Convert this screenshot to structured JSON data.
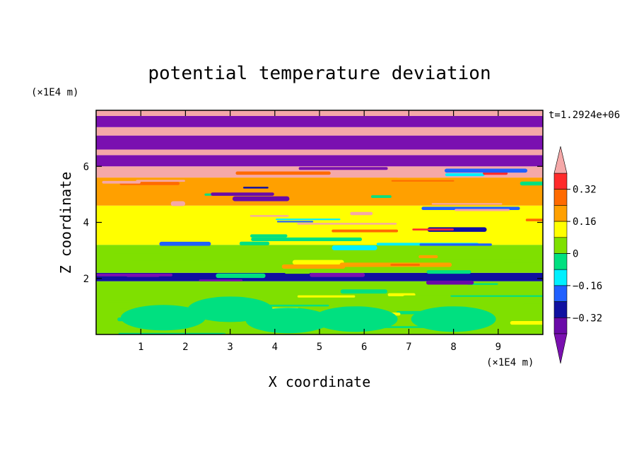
{
  "chart_data": {
    "type": "heatmap",
    "title": "potential temperature deviation",
    "xlabel": "X coordinate",
    "ylabel": "Z coordinate",
    "x_unit": "(×1E4 m)",
    "y_unit": "(×1E4 m)",
    "time_label": "t=1.2924e+06",
    "xlim": [
      0,
      10
    ],
    "ylim": [
      0,
      8
    ],
    "x_ticks": [
      "1",
      "2",
      "3",
      "4",
      "5",
      "6",
      "7",
      "8",
      "9"
    ],
    "y_ticks": [
      "2",
      "4",
      "6"
    ],
    "colorbar": {
      "levels": [
        -0.4,
        -0.32,
        -0.24,
        -0.16,
        -0.08,
        0,
        0.08,
        0.16,
        0.24,
        0.32,
        0.4
      ],
      "labels": [
        "0.32",
        "0.16",
        "0",
        "−0.16",
        "−0.32"
      ],
      "label_values": [
        0.32,
        0.16,
        0,
        -0.16,
        -0.32
      ],
      "colors": [
        "#ff2a2a",
        "#ff6a00",
        "#ffa000",
        "#ffff00",
        "#7fe000",
        "#00e080",
        "#00f0ff",
        "#2060ff",
        "#1010a0",
        "#6a0aa8"
      ],
      "over_color": "#f5a8a8",
      "under_color": "#7a10b0"
    },
    "bands": [
      {
        "z0": 0.0,
        "z1": 1.9,
        "pattern": "mixed",
        "base": 0.04,
        "alt": -0.02
      },
      {
        "z0": 1.9,
        "z1": 2.2,
        "pattern": "mixed",
        "base": -0.3,
        "alt": 0.4
      },
      {
        "z0": 2.2,
        "z1": 3.2,
        "pattern": "mixed",
        "base": 0.05,
        "alt": -0.12
      },
      {
        "z0": 3.2,
        "z1": 4.6,
        "pattern": "mixed",
        "base": 0.1,
        "alt": -0.2
      },
      {
        "z0": 4.6,
        "z1": 5.6,
        "pattern": "mixed",
        "base": 0.2,
        "alt": -0.3
      },
      {
        "z0": 5.6,
        "z1": 6.0,
        "pattern": "mixed",
        "base": 0.45,
        "alt": -0.45
      },
      {
        "z0": 6.0,
        "z1": 6.4,
        "pattern": "solid",
        "base": -0.45
      },
      {
        "z0": 6.4,
        "z1": 6.6,
        "pattern": "solid",
        "base": 0.45
      },
      {
        "z0": 6.6,
        "z1": 7.1,
        "pattern": "solid",
        "base": -0.45
      },
      {
        "z0": 7.1,
        "z1": 7.4,
        "pattern": "solid",
        "base": 0.45
      },
      {
        "z0": 7.4,
        "z1": 7.8,
        "pattern": "solid",
        "base": -0.45
      },
      {
        "z0": 7.8,
        "z1": 8.0,
        "pattern": "solid",
        "base": 0.45
      }
    ]
  }
}
